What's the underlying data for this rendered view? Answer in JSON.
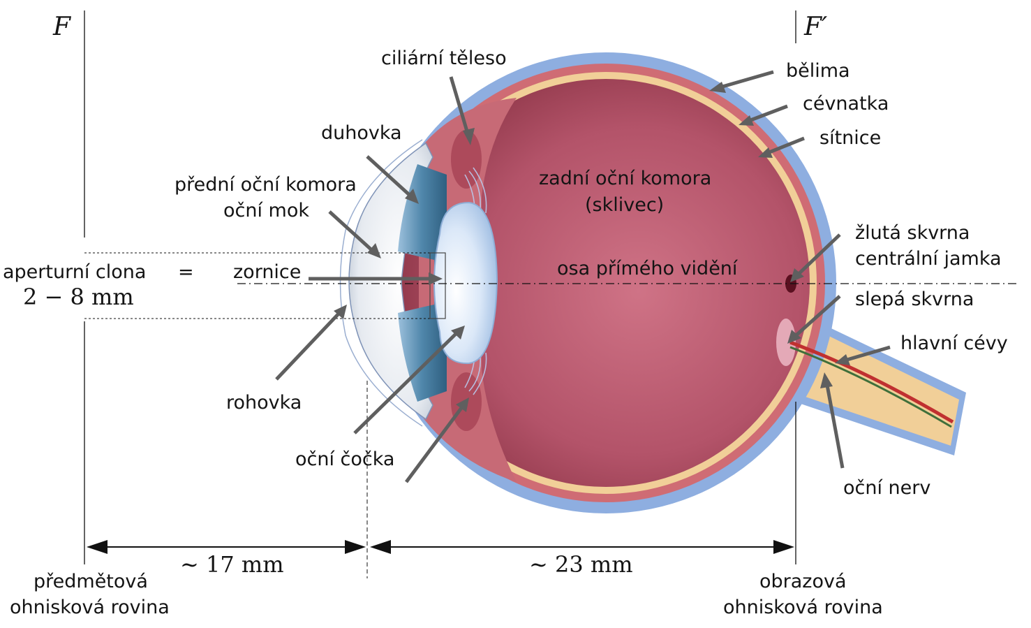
{
  "focal": {
    "front_symbol": "F",
    "back_symbol": "F′"
  },
  "labels": {
    "ciliary_body": "ciliární těleso",
    "sclera": "bělima",
    "choroid": "cévnatka",
    "retina": "sítnice",
    "iris": "duhovka",
    "posterior_chamber_line1": "zadní oční komora",
    "posterior_chamber_line2": "(sklivec)",
    "anterior_chamber_line1": "přední oční komora",
    "anterior_chamber_line2": "oční mok",
    "macula_line1": "žlutá skvrna",
    "macula_line2": "centrální jamka",
    "aperture_stop": "aperturní clona",
    "equals": "=",
    "pupil": "zornice",
    "aperture_size": "2 − 8 mm",
    "visual_axis": "osa přímého vidění",
    "blind_spot": "slepá skvrna",
    "main_vessels": "hlavní cévy",
    "cornea": "rohovka",
    "lens": "oční čočka",
    "optic_nerve": "oční nerv",
    "front_distance": "∼ 17 mm",
    "back_distance": "∼ 23 mm",
    "object_plane_line1": "předmětová",
    "object_plane_line2": "ohnisková rovina",
    "image_plane_line1": "obrazová",
    "image_plane_line2": "ohnisková rovina"
  },
  "colors": {
    "sclera": "#8eaee0",
    "choroid": "#cf6c74",
    "retina": "#f1cf98",
    "vitreous": "#b9566a",
    "arrow": "#5f5f5f"
  }
}
